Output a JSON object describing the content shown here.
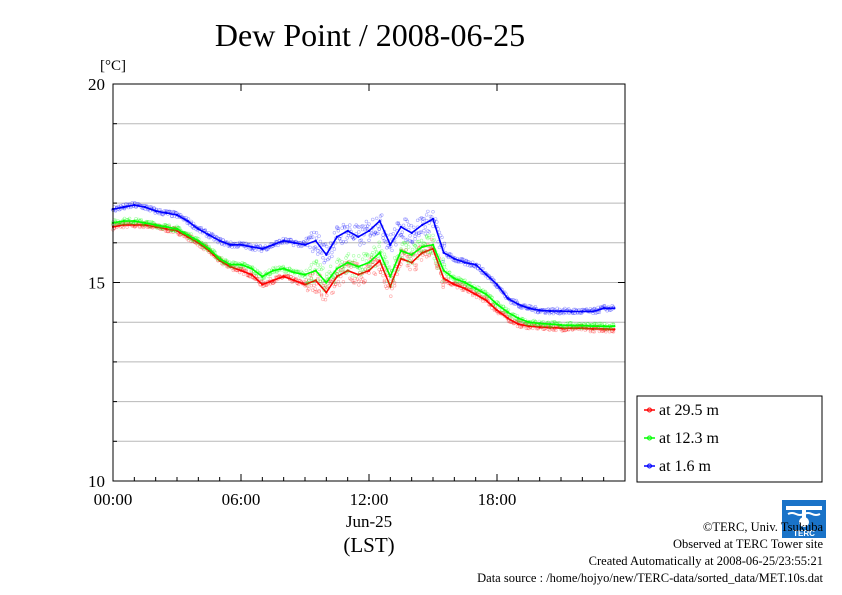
{
  "chart_data": {
    "type": "line",
    "title": "Dew Point / 2008-06-25",
    "ylabel": "[°C]",
    "xlabel": "(LST)",
    "date_label": "Jun-25",
    "xlim": [
      "00:00",
      "24:00"
    ],
    "ylim": [
      10,
      20
    ],
    "x_ticks": [
      "00:00",
      "06:00",
      "12:00",
      "18:00"
    ],
    "y_ticks": [
      10,
      15,
      20
    ],
    "grid": true,
    "legend_position": "lower-right outside",
    "x_hours": [
      0,
      0.5,
      1,
      1.5,
      2,
      2.5,
      3,
      3.5,
      4,
      4.5,
      5,
      5.5,
      6,
      6.5,
      7,
      7.5,
      8,
      8.5,
      9,
      9.5,
      10,
      10.5,
      11,
      11.5,
      12,
      12.5,
      13,
      13.5,
      14,
      14.5,
      15,
      15.5,
      16,
      16.5,
      17,
      17.5,
      18,
      18.5,
      19,
      19.5,
      20,
      20.5,
      21,
      21.5,
      22,
      22.5,
      23,
      23.5
    ],
    "series": [
      {
        "name": "at 29.5 m",
        "color": "#ff0000",
        "values": [
          16.4,
          16.45,
          16.45,
          16.45,
          16.4,
          16.35,
          16.3,
          16.15,
          16.0,
          15.8,
          15.55,
          15.4,
          15.3,
          15.2,
          14.95,
          15.05,
          15.15,
          15.05,
          14.95,
          15.05,
          14.75,
          15.15,
          15.3,
          15.2,
          15.3,
          15.55,
          14.9,
          15.6,
          15.5,
          15.75,
          15.85,
          15.1,
          14.95,
          14.85,
          14.7,
          14.55,
          14.3,
          14.1,
          13.95,
          13.9,
          13.88,
          13.87,
          13.85,
          13.85,
          13.85,
          13.83,
          13.83,
          13.82
        ]
      },
      {
        "name": "at 12.3 m",
        "color": "#00ff00",
        "values": [
          16.5,
          16.55,
          16.55,
          16.5,
          16.45,
          16.4,
          16.35,
          16.2,
          16.05,
          15.85,
          15.6,
          15.45,
          15.45,
          15.35,
          15.15,
          15.3,
          15.35,
          15.25,
          15.2,
          15.3,
          15.0,
          15.35,
          15.5,
          15.4,
          15.5,
          15.75,
          15.15,
          15.8,
          15.7,
          15.9,
          15.95,
          15.3,
          15.1,
          15.0,
          14.85,
          14.7,
          14.45,
          14.25,
          14.1,
          14.0,
          13.97,
          13.95,
          13.93,
          13.92,
          13.92,
          13.9,
          13.9,
          13.9
        ]
      },
      {
        "name": "at 1.6 m",
        "color": "#0000ff",
        "values": [
          16.85,
          16.9,
          16.95,
          16.9,
          16.8,
          16.75,
          16.7,
          16.55,
          16.35,
          16.2,
          16.05,
          15.95,
          15.95,
          15.9,
          15.85,
          15.95,
          16.05,
          16.0,
          15.95,
          16.05,
          15.7,
          16.15,
          16.3,
          16.15,
          16.3,
          16.55,
          15.95,
          16.4,
          16.25,
          16.45,
          16.6,
          15.75,
          15.6,
          15.5,
          15.45,
          15.2,
          14.95,
          14.6,
          14.45,
          14.35,
          14.3,
          14.28,
          14.28,
          14.27,
          14.27,
          14.27,
          14.35,
          14.35
        ]
      }
    ]
  },
  "credits": {
    "copyright": "©TERC, Univ. Tsukuba",
    "observed": "Observed at TERC Tower site",
    "created": "Created Automatically at 2008-06-25/23:55:21",
    "source": "Data source : /home/hojyo/new/TERC-data/sorted_data/MET.10s.dat"
  },
  "logo": {
    "text": "TERC",
    "color": "#1a73c8"
  }
}
